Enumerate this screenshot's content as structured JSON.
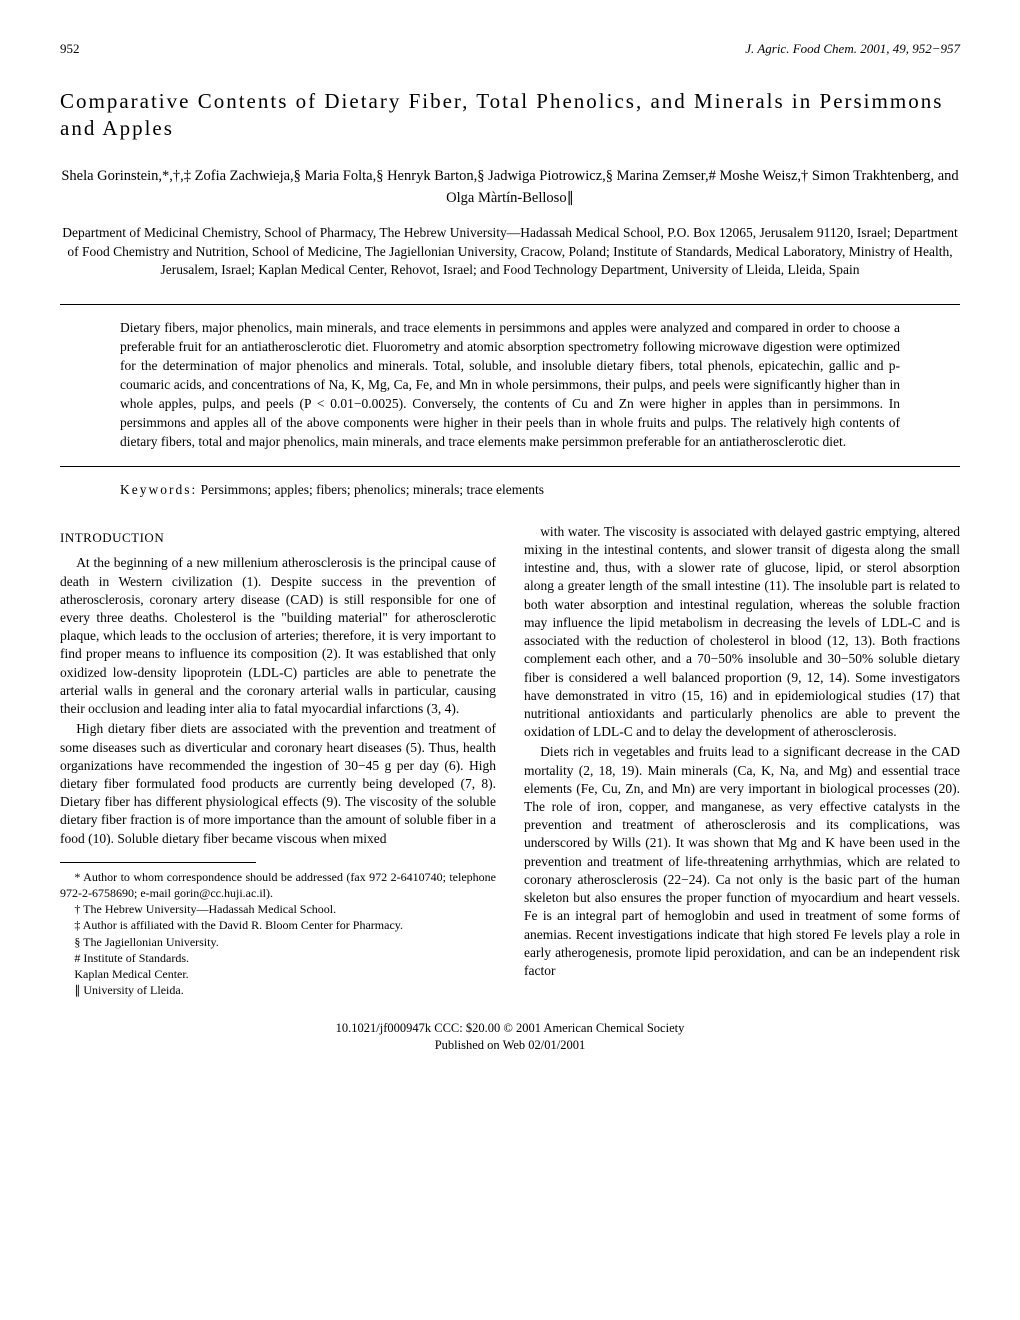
{
  "header": {
    "page_number": "952",
    "journal": "J. Agric. Food Chem. 2001, 49, 952−957"
  },
  "title": "Comparative Contents of Dietary Fiber, Total Phenolics, and Minerals in Persimmons and Apples",
  "authors": "Shela Gorinstein,*,†,‡ Zofia Zachwieja,§ Maria Folta,§ Henryk Barton,§ Jadwiga Piotrowicz,§ Marina Zemser,# Moshe Weisz,† Simon Trakhtenberg,  and Olga Màrtín-Belloso∥",
  "affiliations": "Department of Medicinal Chemistry, School of Pharmacy, The Hebrew University—Hadassah Medical School, P.O. Box 12065, Jerusalem 91120, Israel; Department of Food Chemistry and Nutrition, School of Medicine, The Jagiellonian University, Cracow, Poland; Institute of Standards, Medical Laboratory, Ministry of Health, Jerusalem, Israel; Kaplan Medical Center, Rehovot, Israel; and Food Technology Department, University of Lleida, Lleida, Spain",
  "abstract": "Dietary fibers, major phenolics, main minerals, and trace elements in persimmons and apples were analyzed and compared in order to choose a preferable fruit for an antiatherosclerotic diet. Fluorometry and atomic absorption spectrometry following microwave digestion were optimized for the determination of major phenolics and minerals. Total, soluble, and insoluble dietary fibers, total phenols, epicatechin, gallic and p-coumaric acids, and concentrations of Na, K, Mg, Ca, Fe, and Mn in whole persimmons, their pulps, and peels were significantly higher than in whole apples, pulps, and peels (P < 0.01−0.0025). Conversely, the contents of Cu and Zn were higher in apples than in persimmons. In persimmons and apples all of the above components were higher in their peels than in whole fruits and pulps. The relatively high contents of dietary fibers, total and major phenolics, main minerals, and trace elements make persimmon preferable for an antiatherosclerotic diet.",
  "keywords_label": "Keywords:",
  "keywords": "Persimmons; apples; fibers; phenolics; minerals; trace elements",
  "introduction_heading": "INTRODUCTION",
  "body": {
    "p1": "At the beginning of a new millenium atherosclerosis is the principal cause of death in Western civilization (1). Despite success in the prevention of atherosclerosis, coronary artery disease (CAD) is still responsible for one of every three deaths. Cholesterol is the \"building material\" for atherosclerotic plaque, which leads to the occlusion of arteries; therefore, it is very important to find proper means to influence its composition (2). It was established that only oxidized low-density lipoprotein (LDL-C) particles are able to penetrate the arterial walls in general and the coronary arterial walls in particular, causing their occlusion and leading inter alia to fatal myocardial infarctions (3, 4).",
    "p2": "High dietary fiber diets are associated with the prevention and treatment of some diseases such as diverticular and coronary heart diseases (5). Thus, health organizations have recommended the ingestion of 30−45 g per day (6). High dietary fiber formulated food products are currently being developed (7, 8). Dietary fiber has different physiological effects (9). The viscosity of the soluble dietary fiber fraction is of more importance than the amount of soluble fiber in a food (10). Soluble dietary fiber became viscous when mixed",
    "p3": "with water. The viscosity is associated with delayed gastric emptying, altered mixing in the intestinal contents, and slower transit of digesta along the small intestine and, thus, with a slower rate of glucose, lipid, or sterol absorption along a greater length of the small intestine (11). The insoluble part is related to both water absorption and intestinal regulation, whereas the soluble fraction may influence the lipid metabolism in decreasing the levels of LDL-C and is associated with the reduction of cholesterol in blood (12, 13). Both fractions complement each other, and a 70−50% insoluble and 30−50% soluble dietary fiber is considered a well balanced proportion (9, 12, 14). Some investigators have demonstrated in vitro (15, 16) and in epidemiological studies (17) that nutritional antioxidants and particularly phenolics are able to prevent the oxidation of LDL-C and to delay the development of atherosclerosis.",
    "p4": "Diets rich in vegetables and fruits lead to a significant decrease in the CAD mortality (2, 18, 19). Main minerals (Ca, K, Na, and Mg) and essential trace elements (Fe, Cu, Zn, and Mn) are very important in biological processes (20). The role of iron, copper, and manganese, as very effective catalysts in the prevention and treatment of atherosclerosis and its complications, was underscored by Wills (21). It was shown that Mg and K have been used in the prevention and treatment of life-threatening arrhythmias, which are related to coronary atherosclerosis (22−24). Ca not only is the basic part of the human skeleton but also ensures the proper function of myocardium and heart vessels. Fe is an integral part of hemoglobin and used in treatment of some forms of anemias. Recent investigations indicate that high stored Fe levels play a role in early atherogenesis, promote lipid peroxidation, and can be an independent risk factor"
  },
  "footnotes": {
    "f1": "* Author to whom correspondence should be addressed (fax 972 2-6410740; telephone 972-2-6758690; e-mail gorin@cc.huji.ac.il).",
    "f2": "† The Hebrew University—Hadassah Medical School.",
    "f3": "‡ Author is affiliated with the David R. Bloom Center for Pharmacy.",
    "f4": "§ The Jagiellonian University.",
    "f5": "# Institute of Standards.",
    "f6": "  Kaplan Medical Center.",
    "f7": "∥ University of Lleida."
  },
  "bottom": {
    "line1": "10.1021/jf000947k CCC: $20.00   © 2001 American Chemical Society",
    "line2": "Published on Web 02/01/2001"
  }
}
